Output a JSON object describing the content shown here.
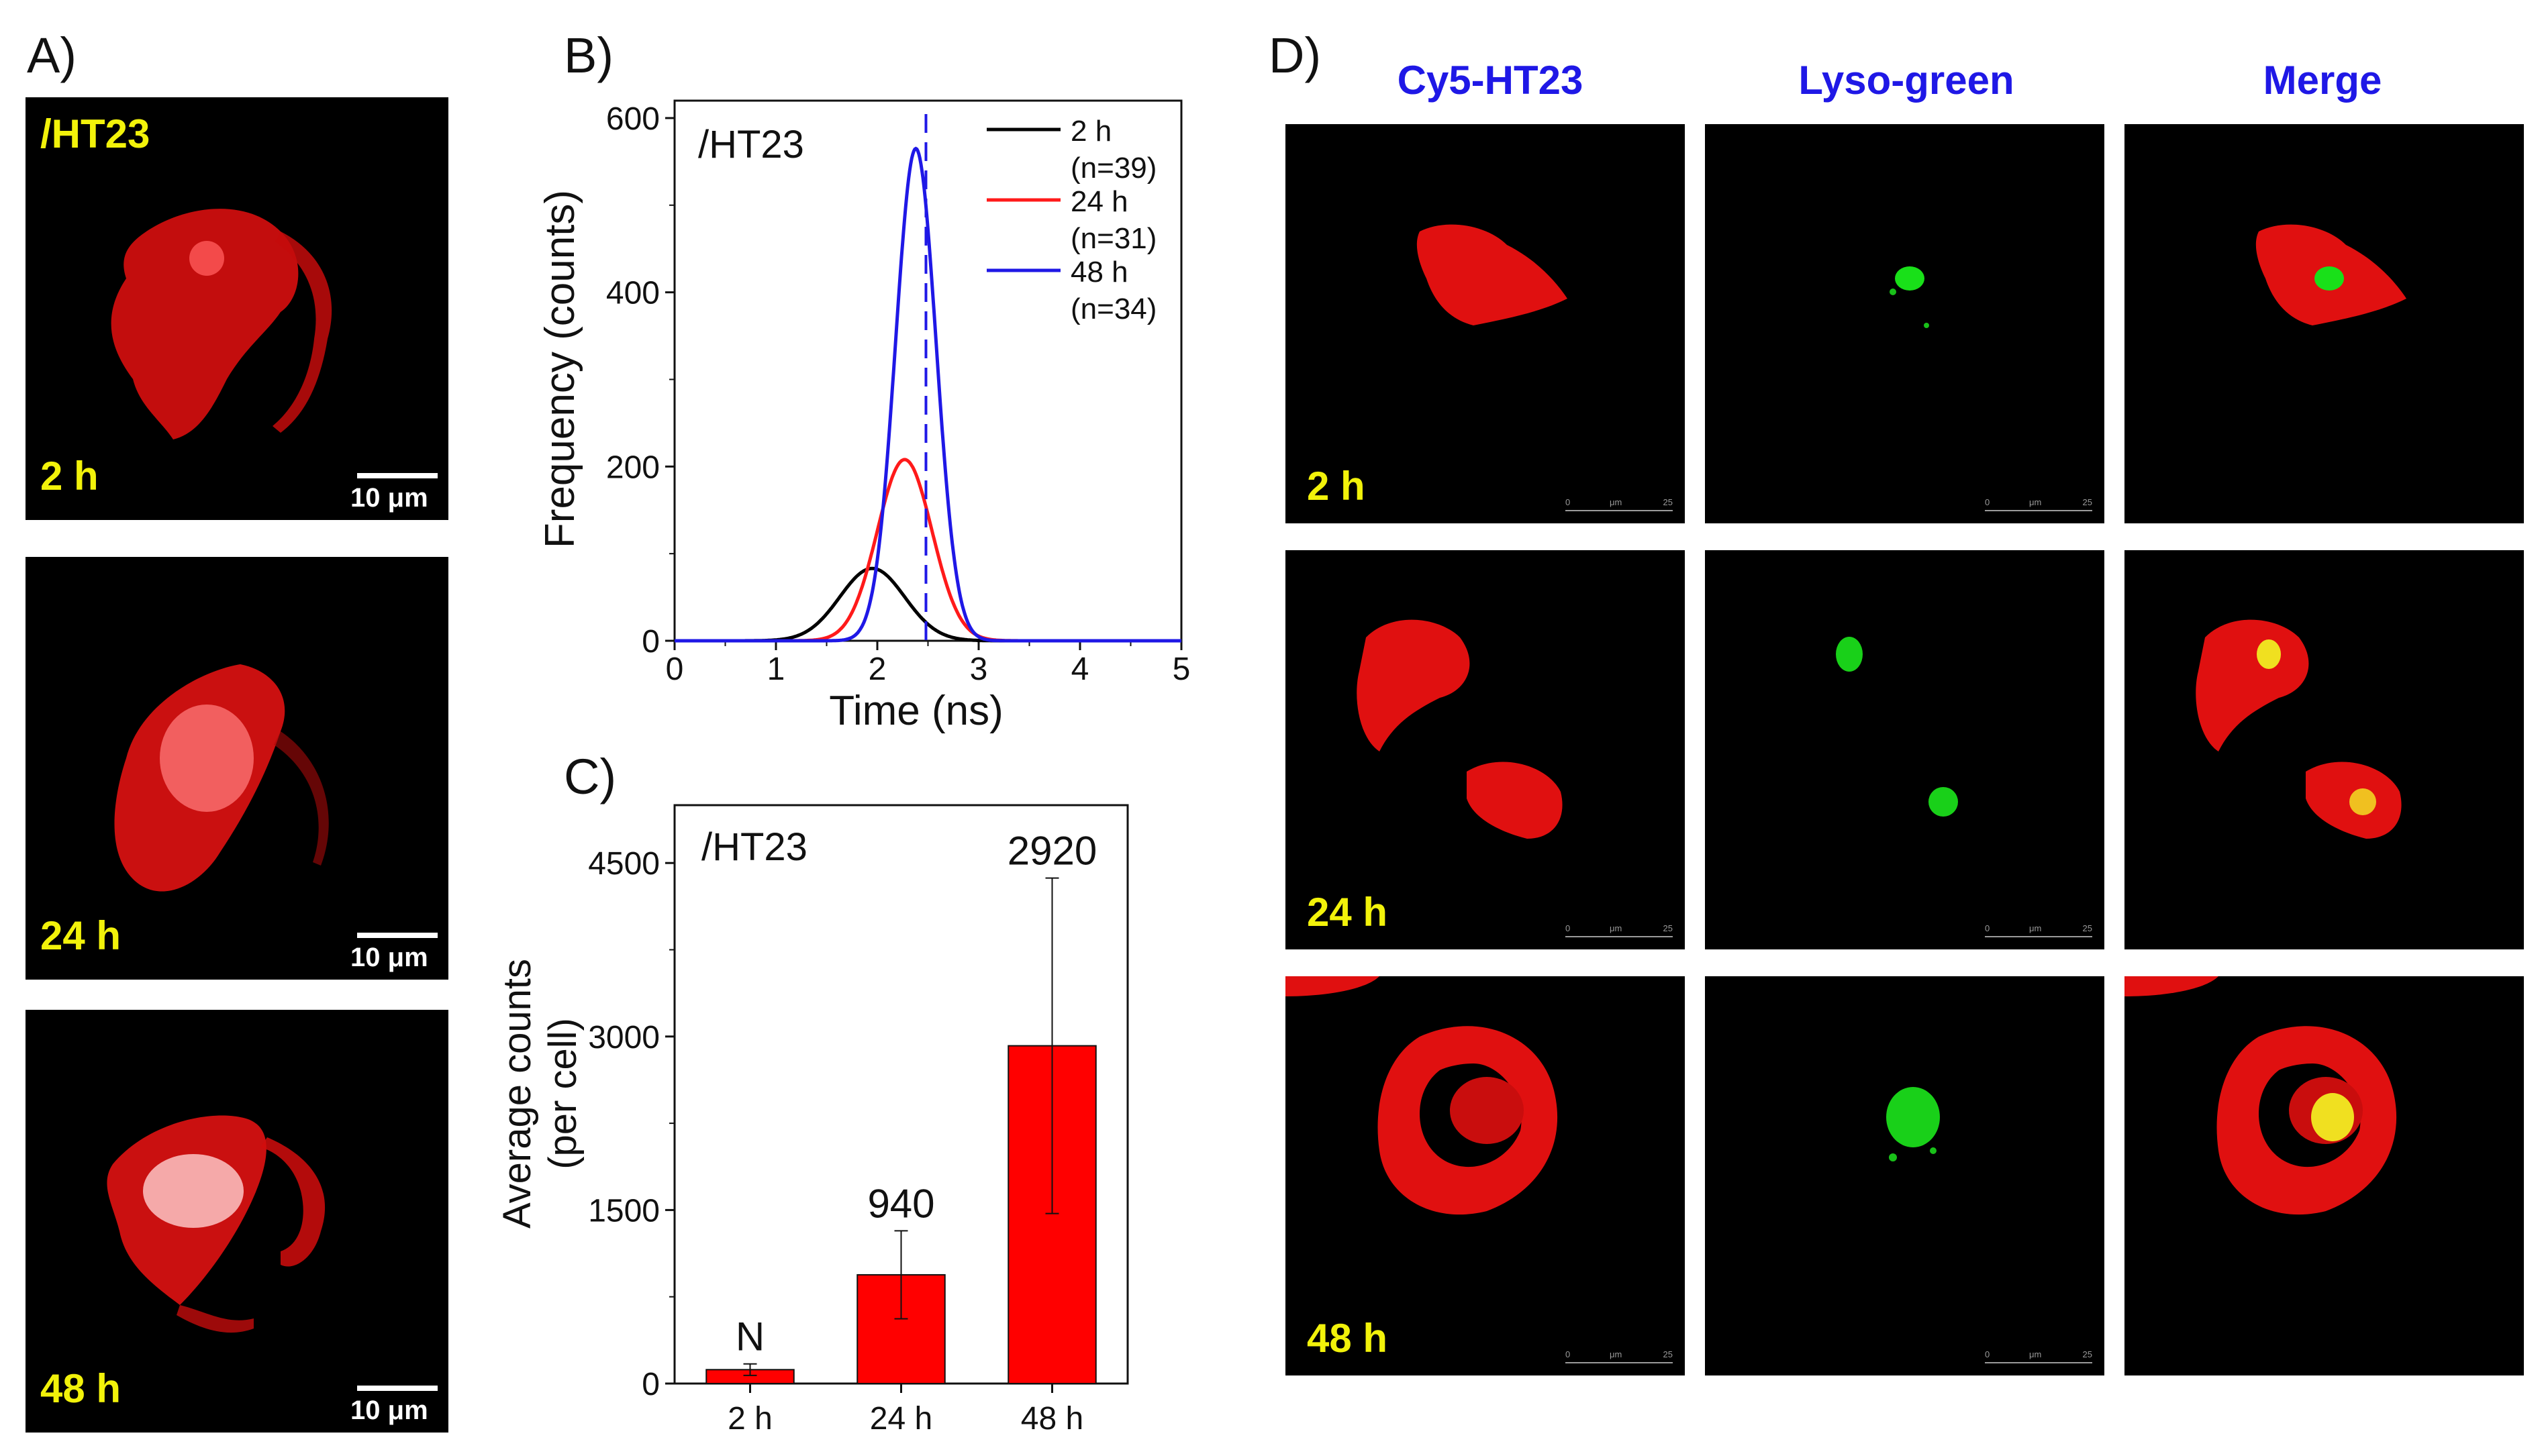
{
  "panel_labels": {
    "a": "A)",
    "b": "B)",
    "c": "C)",
    "d": "D)"
  },
  "panel_a": {
    "sample_label": "/HT23",
    "images": [
      {
        "time": "2 h",
        "scale": "10 μm"
      },
      {
        "time": "24 h",
        "scale": "10 μm"
      },
      {
        "time": "48 h",
        "scale": "10 μm"
      }
    ]
  },
  "panel_d": {
    "columns": [
      "Cy5-HT23",
      "Lyso-green",
      "Merge"
    ],
    "rows": [
      "2 h",
      "24 h",
      "48 h"
    ],
    "scale": {
      "start": "0",
      "unit": "μm",
      "end": "25"
    }
  },
  "colors": {
    "red": "#ff1a1a",
    "black": "#000000",
    "blue": "#1f18e6",
    "yellow": "#f2f20a",
    "bar": "#ff0000"
  },
  "chart_data": [
    {
      "id": "B",
      "type": "line",
      "inset_label": "/HT23",
      "xlabel": "Time (ns)",
      "ylabel": "Frequency (counts)",
      "xlim": [
        0,
        5
      ],
      "ylim": [
        0,
        620
      ],
      "xticks": [
        0,
        1,
        2,
        3,
        4,
        5
      ],
      "yticks": [
        0,
        200,
        400,
        600
      ],
      "dashed_line_x": 2.48,
      "series": [
        {
          "name": "2 h",
          "n": "(n=39)",
          "color": "#000000",
          "peak_x": 1.95,
          "peak_y": 83,
          "sigma": 0.32
        },
        {
          "name": "24 h",
          "n": "(n=31)",
          "color": "#ff1a1a",
          "peak_x": 2.27,
          "peak_y": 208,
          "sigma": 0.27
        },
        {
          "name": "48 h",
          "n": "(n=34)",
          "color": "#1f18e6",
          "peak_x": 2.38,
          "peak_y": 565,
          "sigma": 0.2
        }
      ]
    },
    {
      "id": "C",
      "type": "bar",
      "inset_label": "/HT23",
      "categories": [
        "2 h",
        "24 h",
        "48 h"
      ],
      "values": [
        120,
        940,
        2920
      ],
      "errors": [
        50,
        380,
        1450
      ],
      "labels": [
        "N",
        "940",
        "2920"
      ],
      "ylabel_line1": "Average counts",
      "ylabel_line2": "(per cell)",
      "ylim": [
        0,
        5000
      ],
      "yticks": [
        0,
        1500,
        3000,
        4500
      ]
    }
  ]
}
